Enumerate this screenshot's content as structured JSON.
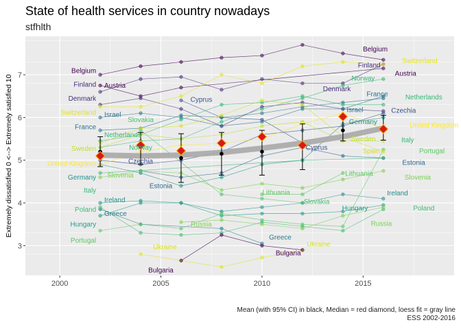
{
  "title": "State of health services in country nowadays",
  "subtitle": "stfhlth",
  "caption_line1": "Mean (with 95% CI) in black, Median = red diamond, loess fit = gray line",
  "caption_line2": "ESS 2002-2016",
  "colors": {
    "panel": "#EBEBEB",
    "grid": "#FFFFFF",
    "mean": "#000000",
    "median": "#D7191C",
    "median_border": "#FDAE00",
    "loess": "#A8A8A8"
  },
  "chart_data": {
    "type": "line",
    "ylabel": "Extremely dissatisfied 0 <--> Extremely satisfied 10",
    "xlim": [
      1998.3,
      2019.5
    ],
    "ylim": [
      2.3,
      7.9
    ],
    "x_ticks": [
      2000,
      2005,
      2010,
      2015
    ],
    "y_ticks": [
      3,
      4,
      5,
      6,
      7
    ],
    "grid": true,
    "series": [
      {
        "name": "Belgium",
        "color": "#440154",
        "x": [
          2002,
          2004,
          2006,
          2008,
          2010,
          2012,
          2014,
          2016
        ],
        "y": [
          7.0,
          7.2,
          7.3,
          7.4,
          7.45,
          7.7,
          7.5,
          7.35
        ]
      },
      {
        "name": "Austria",
        "color": "#440154",
        "x": [
          2002,
          2004,
          2006,
          2016
        ],
        "y": [
          6.75,
          6.5,
          6.7,
          7.15
        ]
      },
      {
        "name": "Finland",
        "color": "#472D7B",
        "x": [
          2002,
          2004,
          2006,
          2008,
          2010,
          2012,
          2014,
          2016
        ],
        "y": [
          6.6,
          6.9,
          6.95,
          6.65,
          6.9,
          6.8,
          6.8,
          7.25
        ]
      },
      {
        "name": "Denmark",
        "color": "#472D7B",
        "x": [
          2002,
          2004,
          2006,
          2008,
          2010,
          2012,
          2014,
          2016
        ],
        "y": [
          6.3,
          6.45,
          6.2,
          5.8,
          6.25,
          6.35,
          6.2,
          6.15
        ]
      },
      {
        "name": "Cyprus",
        "color": "#3B528B",
        "x": [
          2006,
          2008,
          2010,
          2012
        ],
        "y": [
          6.4,
          6.0,
          5.95,
          5.4
        ]
      },
      {
        "name": "Czechia",
        "color": "#3B528B",
        "x": [
          2002,
          2004,
          2006,
          2008,
          2010,
          2012,
          2014,
          2016
        ],
        "y": [
          5.0,
          4.9,
          5.0,
          5.2,
          5.6,
          5.7,
          5.8,
          6.1
        ]
      },
      {
        "name": "Israel",
        "color": "#2C728E",
        "x": [
          2002,
          2004,
          2006,
          2008,
          2010,
          2012,
          2014,
          2016
        ],
        "y": [
          6.0,
          6.1,
          6.0,
          5.8,
          5.9,
          6.2,
          6.2,
          6.5
        ]
      },
      {
        "name": "France",
        "color": "#2C728E",
        "x": [
          2002,
          2004,
          2006,
          2008,
          2010,
          2012,
          2014,
          2016
        ],
        "y": [
          5.7,
          5.75,
          6.05,
          6.0,
          6.1,
          6.25,
          6.35,
          6.45
        ]
      },
      {
        "name": "Estonia",
        "color": "#31688E",
        "x": [
          2004,
          2006,
          2008,
          2010,
          2012,
          2014,
          2016
        ],
        "y": [
          4.75,
          4.6,
          4.7,
          5.1,
          5.3,
          5.1,
          5.05
        ]
      },
      {
        "name": "Germany",
        "color": "#21918C",
        "x": [
          2002,
          2004,
          2006,
          2008,
          2010,
          2012,
          2014,
          2016
        ],
        "y": [
          4.9,
          4.7,
          4.4,
          4.6,
          4.9,
          5.0,
          5.85,
          6.0
        ]
      },
      {
        "name": "Ireland",
        "color": "#21918C",
        "x": [
          2002,
          2004,
          2006,
          2008,
          2010,
          2012,
          2014,
          2016
        ],
        "y": [
          4.0,
          4.05,
          4.0,
          3.8,
          3.9,
          4.0,
          4.2,
          4.1
        ]
      },
      {
        "name": "Hungary",
        "color": "#1F9E89",
        "x": [
          2002,
          2004,
          2006,
          2008,
          2010,
          2012,
          2014,
          2016
        ],
        "y": [
          3.7,
          4.0,
          4.0,
          3.7,
          3.75,
          3.75,
          3.8,
          3.95
        ]
      },
      {
        "name": "Greece",
        "color": "#287D8E",
        "x": [
          2002,
          2004,
          2008,
          2010
        ],
        "y": [
          3.85,
          3.5,
          3.4,
          3.05
        ]
      },
      {
        "name": "Netherlands",
        "color": "#35B779",
        "x": [
          2002,
          2004,
          2006,
          2008,
          2010,
          2012,
          2014,
          2016
        ],
        "y": [
          5.45,
          5.6,
          5.95,
          6.3,
          6.35,
          6.5,
          6.3,
          6.3
        ]
      },
      {
        "name": "Norway",
        "color": "#35B779",
        "x": [
          2002,
          2004,
          2006,
          2008,
          2010,
          2012,
          2014,
          2016
        ],
        "y": [
          5.3,
          5.45,
          5.5,
          5.9,
          6.2,
          6.45,
          6.75,
          6.9
        ]
      },
      {
        "name": "Slovakia",
        "color": "#4AC16D",
        "x": [
          2004,
          2008,
          2010,
          2012
        ],
        "y": [
          5.7,
          4.2,
          4.1,
          4.0
        ]
      },
      {
        "name": "Lithuania",
        "color": "#5DC863",
        "x": [
          2010,
          2012,
          2014
        ],
        "y": [
          4.2,
          4.2,
          4.7
        ]
      },
      {
        "name": "Slovenia",
        "color": "#7AD151",
        "x": [
          2002,
          2004,
          2006,
          2008,
          2010,
          2012,
          2014,
          2016
        ],
        "y": [
          4.6,
          4.75,
          4.7,
          4.3,
          4.45,
          4.35,
          4.55,
          4.75
        ]
      },
      {
        "name": "Portugal",
        "color": "#5DC863",
        "x": [
          2002,
          2004,
          2006,
          2008,
          2010,
          2012,
          2014,
          2016
        ],
        "y": [
          3.35,
          3.5,
          3.4,
          3.75,
          3.6,
          3.5,
          3.45,
          5.25
        ]
      },
      {
        "name": "Poland",
        "color": "#3FBC73",
        "x": [
          2002,
          2004,
          2006,
          2008,
          2010,
          2012,
          2014,
          2016
        ],
        "y": [
          3.9,
          3.3,
          3.25,
          3.3,
          3.55,
          3.45,
          3.35,
          3.85
        ]
      },
      {
        "name": "Russia",
        "color": "#7AD151",
        "x": [
          2006,
          2008,
          2010,
          2012,
          2014,
          2016
        ],
        "y": [
          3.55,
          3.6,
          3.5,
          3.4,
          3.7,
          3.9
        ]
      },
      {
        "name": "Sweden",
        "color": "#BDDF26",
        "x": [
          2002,
          2004,
          2006,
          2008,
          2010,
          2012,
          2014,
          2016
        ],
        "y": [
          5.3,
          5.6,
          5.5,
          5.6,
          5.8,
          5.9,
          5.45,
          5.45
        ]
      },
      {
        "name": "Spain",
        "color": "#D2E21B",
        "x": [
          2002,
          2004,
          2006,
          2008,
          2010,
          2012,
          2014,
          2016
        ],
        "y": [
          5.4,
          5.75,
          5.8,
          6.05,
          6.4,
          6.3,
          5.55,
          5.2
        ]
      },
      {
        "name": "Switzerland",
        "color": "#E4E419",
        "x": [
          2002,
          2004,
          2006,
          2008,
          2010,
          2012,
          2014,
          2016
        ],
        "y": [
          6.25,
          6.25,
          6.5,
          7.0,
          6.8,
          7.2,
          7.3,
          7.25
        ]
      },
      {
        "name": "United Kingdom",
        "color": "#FDE725",
        "x": [
          2002,
          2004,
          2006,
          2008,
          2010,
          2012,
          2014,
          2016
        ],
        "y": [
          4.9,
          5.2,
          5.35,
          5.4,
          5.5,
          5.85,
          6.1,
          5.75
        ]
      },
      {
        "name": "Ukraine",
        "color": "#DCE319",
        "x": [
          2004,
          2006,
          2008,
          2010,
          2012
        ],
        "y": [
          2.8,
          2.65,
          2.5,
          2.72,
          2.88
        ]
      },
      {
        "name": "Bulgaria",
        "color": "#440154",
        "x": [
          2006,
          2008,
          2010,
          2012
        ],
        "y": [
          2.65,
          3.25,
          3.0,
          2.9
        ]
      },
      {
        "name": "Italy",
        "color": "#35B779",
        "x": [
          2002,
          2012,
          2016
        ],
        "y": [
          4.7,
          5.0,
          5.05
        ]
      }
    ],
    "mean": {
      "x": [
        2002,
        2004,
        2006,
        2008,
        2010,
        2012,
        2014,
        2016
      ],
      "y": [
        5.2,
        5.3,
        5.05,
        5.15,
        5.2,
        5.3,
        5.7,
        5.75
      ],
      "lo": [
        4.85,
        4.9,
        4.48,
        4.65,
        4.65,
        4.78,
        5.45,
        5.47
      ],
      "hi": [
        5.55,
        5.65,
        5.62,
        5.65,
        5.7,
        5.85,
        6.0,
        6.05
      ]
    },
    "median": {
      "x": [
        2002,
        2004,
        2006,
        2008,
        2010,
        2012,
        2014,
        2016
      ],
      "y": [
        5.1,
        5.35,
        5.22,
        5.4,
        5.55,
        5.35,
        6.02,
        5.73
      ]
    },
    "loess": {
      "x": [
        2002,
        2004,
        2006,
        2008,
        2010,
        2012,
        2014,
        2016
      ],
      "y": [
        5.12,
        5.1,
        5.12,
        5.18,
        5.28,
        5.4,
        5.55,
        5.75
      ]
    },
    "labels_left": [
      {
        "text": "Belgium",
        "y": 7.1
      },
      {
        "text": "Austria",
        "y": 6.75
      },
      {
        "text": "Finland",
        "y": 6.78
      },
      {
        "text": "Denmark",
        "y": 6.45
      },
      {
        "text": "Switzerland",
        "y": 6.12
      },
      {
        "text": "Israel",
        "y": 6.07
      },
      {
        "text": "France",
        "y": 5.78
      },
      {
        "text": "Netherlands",
        "y": 5.6
      },
      {
        "text": "Sweden",
        "y": 5.28
      },
      {
        "text": "United Kingdom",
        "y": 4.92
      },
      {
        "text": "Germany",
        "y": 4.6
      },
      {
        "text": "Italy",
        "y": 4.3
      },
      {
        "text": "Ireland",
        "y": 4.07
      },
      {
        "text": "Poland",
        "y": 3.85
      },
      {
        "text": "Greece",
        "y": 3.75
      },
      {
        "text": "Hungary",
        "y": 3.5
      },
      {
        "text": "Portugal",
        "y": 3.13
      }
    ],
    "labels_mid": [
      {
        "text": "Slovakia",
        "x": 2004,
        "y": 5.95
      },
      {
        "text": "Norway",
        "x": 2004,
        "y": 5.3
      },
      {
        "text": "Czechia",
        "x": 2004,
        "y": 4.98
      },
      {
        "text": "Slovenia",
        "x": 2003,
        "y": 4.65
      },
      {
        "text": "Estonia",
        "x": 2005,
        "y": 4.4
      },
      {
        "text": "Cyprus",
        "x": 2007,
        "y": 6.42
      },
      {
        "text": "Russia",
        "x": 2007,
        "y": 3.5
      },
      {
        "text": "Ukraine",
        "x": 2005.2,
        "y": 2.97
      },
      {
        "text": "Bulgaria",
        "x": 2005,
        "y": 2.43
      },
      {
        "text": "Lithuania",
        "x": 2010.7,
        "y": 4.25
      },
      {
        "text": "Slovakia",
        "x": 2012.7,
        "y": 4.03
      },
      {
        "text": "Greece",
        "x": 2010.9,
        "y": 3.2
      },
      {
        "text": "Ukraine",
        "x": 2012.8,
        "y": 3.04
      },
      {
        "text": "Bulgaria",
        "x": 2011.3,
        "y": 2.83
      },
      {
        "text": "Cyprus",
        "x": 2012.7,
        "y": 5.3
      }
    ],
    "labels_right": [
      {
        "text": "Belgium",
        "x": 2015.6,
        "y": 7.6
      },
      {
        "text": "Switzerland",
        "x": 2017.8,
        "y": 7.33
      },
      {
        "text": "Finland",
        "x": 2015.3,
        "y": 7.23
      },
      {
        "text": "Austria",
        "x": 2017.1,
        "y": 7.03
      },
      {
        "text": "Norway",
        "x": 2015.0,
        "y": 6.92
      },
      {
        "text": "Denmark",
        "x": 2013.7,
        "y": 6.67
      },
      {
        "text": "France",
        "x": 2015.7,
        "y": 6.55
      },
      {
        "text": "Netherlands",
        "x": 2018.0,
        "y": 6.48
      },
      {
        "text": "Israel",
        "x": 2014.6,
        "y": 6.18
      },
      {
        "text": "Czechia",
        "x": 2017.0,
        "y": 6.17
      },
      {
        "text": "Germany",
        "x": 2015.0,
        "y": 5.9
      },
      {
        "text": "United Kingdom",
        "x": 2018.5,
        "y": 5.82
      },
      {
        "text": "Sweden",
        "x": 2015.0,
        "y": 5.5
      },
      {
        "text": "Italy",
        "x": 2017.2,
        "y": 5.48
      },
      {
        "text": "Spain",
        "x": 2015.4,
        "y": 5.22
      },
      {
        "text": "Portugal",
        "x": 2018.4,
        "y": 5.22
      },
      {
        "text": "Estonia",
        "x": 2017.5,
        "y": 4.95
      },
      {
        "text": "Lithuania",
        "x": 2014.8,
        "y": 4.69
      },
      {
        "text": "Slovenia",
        "x": 2017.7,
        "y": 4.6
      },
      {
        "text": "Ireland",
        "x": 2016.7,
        "y": 4.23
      },
      {
        "text": "Hungary",
        "x": 2014.6,
        "y": 3.88
      },
      {
        "text": "Poland",
        "x": 2018.0,
        "y": 3.88
      },
      {
        "text": "Russia",
        "x": 2015.9,
        "y": 3.52
      }
    ]
  }
}
